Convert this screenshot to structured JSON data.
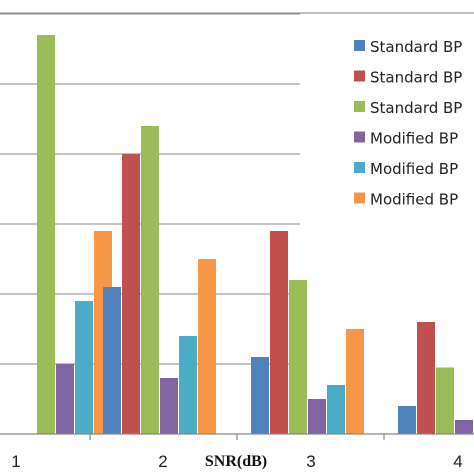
{
  "chart_data": {
    "type": "bar",
    "xlabel": "SNR(dB)",
    "ylabel": "",
    "grid": true,
    "legend_position": "top-right",
    "categories": [
      "1",
      "2",
      "3",
      "4"
    ],
    "ylim": [
      0,
      6
    ],
    "series": [
      {
        "name": "Standard BP",
        "color": "#4f81bd",
        "values": [
          null,
          2.1,
          1.1,
          0.4
        ]
      },
      {
        "name": "Standard BP",
        "color": "#c0504d",
        "values": [
          null,
          4.0,
          2.9,
          1.6
        ]
      },
      {
        "name": "Standard BP",
        "color": "#9bbb59",
        "values": [
          5.7,
          4.4,
          2.2,
          0.95
        ]
      },
      {
        "name": "Modified BP",
        "color": "#8064a2",
        "values": [
          1.0,
          0.8,
          0.5,
          0.2
        ]
      },
      {
        "name": "Modified BP",
        "color": "#4bacc6",
        "values": [
          1.9,
          1.4,
          0.7,
          null
        ]
      },
      {
        "name": "Modified BP",
        "color": "#f79646",
        "values": [
          2.9,
          2.5,
          1.5,
          null
        ]
      }
    ]
  }
}
